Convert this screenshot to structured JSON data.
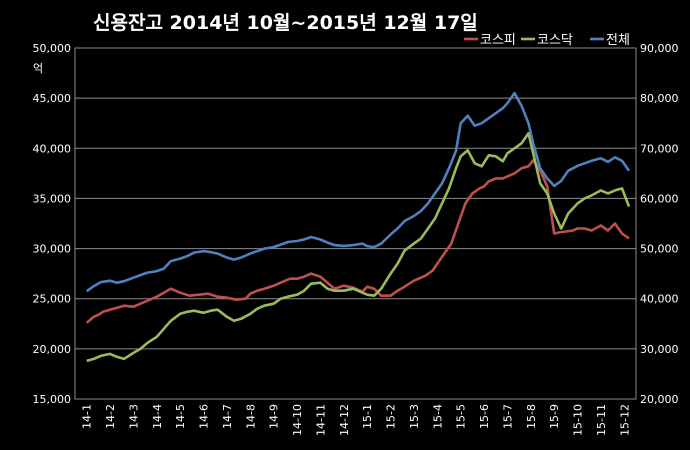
{
  "chart_data": {
    "type": "line",
    "title": "신용잔고  2014년 10월~2015년 12월 17일",
    "y_left_unit": "억",
    "grid": true,
    "legend_position": "top-right",
    "y_left": {
      "lim": [
        15000,
        50000
      ],
      "ticks": [
        "15,000",
        "20,000",
        "25,000",
        "30,000",
        "35,000",
        "40,000",
        "45,000",
        "50,000"
      ]
    },
    "y_right": {
      "lim": [
        20000,
        90000
      ],
      "ticks": [
        "20,000",
        "30,000",
        "40,000",
        "50,000",
        "60,000",
        "70,000",
        "80,000",
        "90,000"
      ]
    },
    "x_ticks": [
      "14-1",
      "14-2",
      "14-3",
      "14-4",
      "14-5",
      "14-6",
      "14-7",
      "14-8",
      "14-9",
      "14-10",
      "14-11",
      "14-12",
      "15-1",
      "15-2",
      "15-3",
      "15-4",
      "15-5",
      "15-6",
      "15-7",
      "15-8",
      "15-9",
      "15-10",
      "15-11",
      "15-12"
    ],
    "series": [
      {
        "name": "코스피",
        "color": "#c0504d",
        "axis": "left",
        "x": [
          0,
          0.3,
          0.5,
          0.7,
          1,
          1.3,
          1.6,
          2,
          2.3,
          2.6,
          3,
          3.3,
          3.6,
          4,
          4.4,
          4.8,
          5.2,
          5.6,
          6,
          6.4,
          6.8,
          7,
          7.3,
          7.6,
          8,
          8.4,
          8.7,
          9,
          9.3,
          9.6,
          10,
          10.3,
          10.6,
          11,
          11.4,
          11.8,
          12,
          12.3,
          12.6,
          13,
          13.3,
          13.6,
          14,
          14.2,
          14.5,
          14.8,
          15,
          15.3,
          15.6,
          15.9,
          16.2,
          16.5,
          16.8,
          17,
          17.2,
          17.5,
          17.8,
          18,
          18.3,
          18.6,
          18.9,
          19.1,
          19.4,
          19.7,
          20,
          20.2,
          20.5,
          20.8,
          21,
          21.3,
          21.6,
          22,
          22.3,
          22.6,
          22.9,
          23.2
        ],
        "values": [
          22600,
          23200,
          23400,
          23700,
          23900,
          24100,
          24300,
          24200,
          24500,
          24800,
          25200,
          25600,
          26000,
          25600,
          25300,
          25400,
          25500,
          25200,
          25100,
          24900,
          25000,
          25500,
          25800,
          26000,
          26300,
          26700,
          27000,
          27000,
          27200,
          27500,
          27200,
          26600,
          26000,
          26300,
          26100,
          25700,
          26200,
          26000,
          25300,
          25300,
          25800,
          26200,
          26800,
          27000,
          27300,
          27800,
          28500,
          29500,
          30500,
          32500,
          34500,
          35500,
          36000,
          36200,
          36700,
          37000,
          37000,
          37200,
          37500,
          38000,
          38200,
          38800,
          37800,
          36200,
          31500,
          31600,
          31700,
          31800,
          32000,
          32000,
          31800,
          32300,
          31800,
          32500,
          31500,
          31000
        ]
      },
      {
        "name": "코스닥",
        "color": "#9bbb59",
        "axis": "left",
        "x": [
          0,
          0.3,
          0.6,
          1,
          1.3,
          1.6,
          2,
          2.3,
          2.6,
          3,
          3.3,
          3.6,
          4,
          4.3,
          4.6,
          5,
          5.3,
          5.6,
          6,
          6.3,
          6.6,
          7,
          7.3,
          7.6,
          8,
          8.3,
          8.6,
          9,
          9.3,
          9.6,
          10,
          10.3,
          10.6,
          11,
          11.4,
          11.8,
          12,
          12.3,
          12.6,
          13,
          13.3,
          13.6,
          14,
          14.3,
          14.6,
          14.9,
          15.2,
          15.5,
          15.8,
          16,
          16.3,
          16.6,
          16.9,
          17.2,
          17.5,
          17.8,
          18,
          18.3,
          18.6,
          18.9,
          19.1,
          19.4,
          19.7,
          20,
          20.3,
          20.6,
          21,
          21.3,
          21.6,
          22,
          22.3,
          22.6,
          22.9,
          23.2
        ],
        "values": [
          18800,
          19000,
          19300,
          19500,
          19200,
          19000,
          19600,
          20000,
          20600,
          21200,
          22000,
          22800,
          23500,
          23700,
          23800,
          23600,
          23800,
          23900,
          23200,
          22800,
          23000,
          23500,
          24000,
          24300,
          24500,
          25000,
          25200,
          25400,
          25800,
          26500,
          26600,
          26000,
          25800,
          25800,
          26000,
          25600,
          25400,
          25300,
          26000,
          27500,
          28500,
          29800,
          30500,
          31000,
          32000,
          33000,
          34500,
          36000,
          38000,
          39200,
          39800,
          38500,
          38200,
          39300,
          39200,
          38700,
          39500,
          40000,
          40500,
          41500,
          39500,
          36500,
          35500,
          33500,
          32000,
          33500,
          34500,
          35000,
          35300,
          35800,
          35500,
          35800,
          36000,
          34200
        ]
      },
      {
        "name": "전체",
        "color": "#4f81bd",
        "axis": "right",
        "x": [
          0,
          0.3,
          0.6,
          1,
          1.3,
          1.6,
          2,
          2.3,
          2.6,
          3,
          3.3,
          3.6,
          4,
          4.3,
          4.6,
          5,
          5.3,
          5.6,
          6,
          6.3,
          6.6,
          7,
          7.3,
          7.6,
          8,
          8.3,
          8.6,
          9,
          9.3,
          9.6,
          10,
          10.3,
          10.6,
          11,
          11.4,
          11.8,
          12,
          12.3,
          12.6,
          13,
          13.3,
          13.6,
          14,
          14.3,
          14.6,
          14.9,
          15.2,
          15.5,
          15.8,
          16,
          16.3,
          16.6,
          16.9,
          17.2,
          17.5,
          17.8,
          18,
          18.3,
          18.6,
          18.9,
          19.1,
          19.4,
          19.7,
          20,
          20.3,
          20.6,
          21,
          21.3,
          21.6,
          22,
          22.3,
          22.6,
          22.9,
          23.2
        ],
        "values": [
          41500,
          42500,
          43300,
          43600,
          43200,
          43500,
          44200,
          44700,
          45200,
          45500,
          46000,
          47500,
          48000,
          48500,
          49200,
          49500,
          49300,
          49000,
          48200,
          47800,
          48200,
          49000,
          49500,
          50000,
          50300,
          50800,
          51300,
          51500,
          51800,
          52300,
          51800,
          51200,
          50700,
          50500,
          50700,
          51000,
          50500,
          50300,
          51000,
          52800,
          54000,
          55500,
          56500,
          57500,
          59000,
          61000,
          63000,
          66000,
          69500,
          75000,
          76500,
          74500,
          75000,
          76000,
          77000,
          78000,
          79000,
          81000,
          78500,
          75000,
          71000,
          66000,
          64000,
          62500,
          63500,
          65500,
          66500,
          67000,
          67500,
          68000,
          67300,
          68200,
          67500,
          65500
        ]
      }
    ]
  }
}
